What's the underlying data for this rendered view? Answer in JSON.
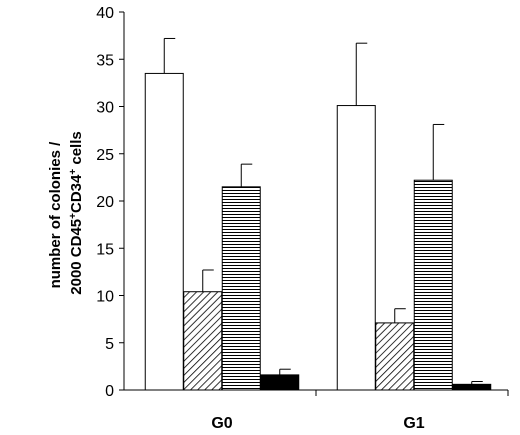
{
  "chart_data": {
    "type": "bar",
    "categories": [
      "G0",
      "G1"
    ],
    "ylabel_line1": "number of colonies /",
    "ylabel_line2_prefix": "2000 CD45",
    "ylabel_line2_mid": "CD34",
    "ylabel_line2_suffix": " cells",
    "ylabel_sup": "+",
    "ylim": [
      0,
      40
    ],
    "yticks": [
      "0",
      "5",
      "10",
      "15",
      "20",
      "25",
      "30",
      "35",
      "40"
    ],
    "ytick_values": [
      0,
      5,
      10,
      15,
      20,
      25,
      30,
      35,
      40
    ],
    "series": [
      {
        "pattern": "white",
        "values": [
          33.5,
          30.1
        ],
        "errors": [
          3.7,
          6.6
        ]
      },
      {
        "pattern": "diagonal-hatch",
        "values": [
          10.4,
          7.1
        ],
        "errors": [
          2.3,
          1.5
        ]
      },
      {
        "pattern": "horizontal-hatch",
        "values": [
          21.5,
          22.2
        ],
        "errors": [
          2.4,
          5.9
        ]
      },
      {
        "pattern": "black",
        "values": [
          1.6,
          0.6
        ],
        "errors": [
          0.6,
          0.3
        ]
      }
    ],
    "grid": false,
    "legend": "none"
  }
}
